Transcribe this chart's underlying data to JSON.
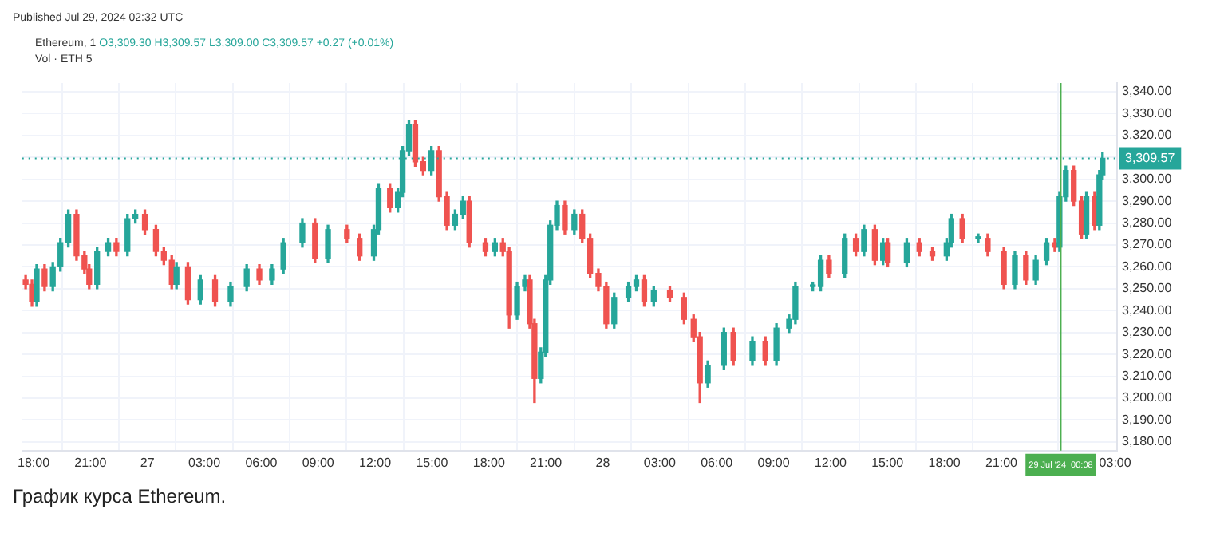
{
  "chart_data": {
    "type": "candlestick",
    "title": "Ethereum, 1",
    "subtitle": "O3,309.30 H3,309.57 L3,309.00 C3,309.57 +0.27 (+0.01%)",
    "annotations": [
      "Published Jul 29, 2024 02:32 UTC",
      "Vol · ETH 5",
      "График курса Ethereum."
    ],
    "x": [
      "2024-07-26T17:35",
      "2024-07-26T17:55",
      "2024-07-26T18:10",
      "2024-07-26T18:35",
      "2024-07-26T19:01",
      "2024-07-26T19:25",
      "2024-07-26T19:50",
      "2024-07-26T20:16",
      "2024-07-26T20:41",
      "2024-07-26T20:56",
      "2024-07-26T21:21",
      "2024-07-26T21:56",
      "2024-07-26T22:22",
      "2024-07-26T22:57",
      "2024-07-26T23:22",
      "2024-07-26T23:52",
      "2024-07-27T00:27",
      "2024-07-27T00:52",
      "2024-07-27T01:17",
      "2024-07-27T01:32",
      "2024-07-27T02:08",
      "2024-07-27T02:48",
      "2024-07-27T03:34",
      "2024-07-27T04:23",
      "2024-07-27T05:14",
      "2024-07-27T05:54",
      "2024-07-27T06:34",
      "2024-07-27T07:10",
      "2024-07-27T08:10",
      "2024-07-27T08:50",
      "2024-07-27T09:31",
      "2024-07-27T10:31",
      "2024-07-27T11:11",
      "2024-07-27T11:56",
      "2024-07-27T12:11",
      "2024-07-27T12:47",
      "2024-07-27T13:12",
      "2024-07-27T13:27",
      "2024-07-27T13:47",
      "2024-07-27T14:07",
      "2024-07-27T14:32",
      "2024-07-27T14:58",
      "2024-07-27T15:22",
      "2024-07-27T15:47",
      "2024-07-27T16:13",
      "2024-07-27T16:38",
      "2024-07-27T16:58",
      "2024-07-27T17:49",
      "2024-07-27T18:19",
      "2024-07-27T18:44",
      "2024-07-27T19:04",
      "2024-07-27T19:29",
      "2024-07-27T19:54",
      "2024-07-27T20:09",
      "2024-07-27T20:24",
      "2024-07-27T20:44",
      "2024-07-27T20:59",
      "2024-07-27T21:14",
      "2024-07-27T21:35",
      "2024-07-27T22:00",
      "2024-07-27T22:30",
      "2024-07-27T22:55",
      "2024-07-27T23:20",
      "2024-07-27T23:46",
      "2024-07-28T00:11",
      "2024-07-28T00:36",
      "2024-07-28T01:21",
      "2024-07-28T01:46",
      "2024-07-28T02:11",
      "2024-07-28T02:41",
      "2024-07-28T03:32",
      "2024-07-28T04:17",
      "2024-07-28T04:47",
      "2024-07-28T05:07",
      "2024-07-28T05:32",
      "2024-07-28T06:23",
      "2024-07-28T06:53",
      "2024-07-28T07:53",
      "2024-07-28T08:34",
      "2024-07-28T09:09",
      "2024-07-28T09:49",
      "2024-07-28T10:09",
      "2024-07-28T11:04",
      "2024-07-28T11:29",
      "2024-07-28T11:55",
      "2024-07-28T12:45",
      "2024-07-28T13:20",
      "2024-07-28T13:46",
      "2024-07-28T14:20",
      "2024-07-28T14:46",
      "2024-07-28T15:01",
      "2024-07-28T16:01",
      "2024-07-28T16:41",
      "2024-07-28T17:22",
      "2024-07-28T18:07",
      "2024-07-28T18:22",
      "2024-07-28T18:57",
      "2024-07-28T19:47",
      "2024-07-28T20:17",
      "2024-07-28T21:08",
      "2024-07-28T21:43",
      "2024-07-28T22:18",
      "2024-07-28T22:49",
      "2024-07-28T23:23",
      "2024-07-28T23:49",
      "2024-07-29T00:04",
      "2024-07-29T00:24",
      "2024-07-29T00:49",
      "2024-07-29T01:14",
      "2024-07-29T01:29",
      "2024-07-29T01:55",
      "2024-07-29T02:10",
      "2024-07-29T02:20"
    ],
    "ohlc": [
      [
        3254,
        3256,
        3250,
        3252
      ],
      [
        3252,
        3254,
        3242,
        3244
      ],
      [
        3244,
        3261,
        3242,
        3259
      ],
      [
        3259,
        3261,
        3249,
        3251
      ],
      [
        3251,
        3262,
        3249,
        3260
      ],
      [
        3260,
        3273,
        3258,
        3271
      ],
      [
        3271,
        3286,
        3269,
        3284
      ],
      [
        3284,
        3286,
        3263,
        3265
      ],
      [
        3265,
        3267,
        3257,
        3259
      ],
      [
        3259,
        3261,
        3250,
        3252
      ],
      [
        3252,
        3269,
        3250,
        3267
      ],
      [
        3267,
        3273,
        3265,
        3271
      ],
      [
        3271,
        3273,
        3265,
        3267
      ],
      [
        3267,
        3284,
        3265,
        3282
      ],
      [
        3282,
        3286,
        3280,
        3284
      ],
      [
        3284,
        3286,
        3275,
        3277
      ],
      [
        3277,
        3279,
        3265,
        3267
      ],
      [
        3267,
        3269,
        3261,
        3263
      ],
      [
        3263,
        3265,
        3250,
        3252
      ],
      [
        3252,
        3262,
        3250,
        3260
      ],
      [
        3260,
        3262,
        3243,
        3245
      ],
      [
        3245,
        3256,
        3243,
        3254
      ],
      [
        3254,
        3256,
        3242,
        3244
      ],
      [
        3244,
        3253,
        3242,
        3251
      ],
      [
        3251,
        3261,
        3249,
        3259
      ],
      [
        3259,
        3261,
        3252,
        3254
      ],
      [
        3254,
        3261,
        3252,
        3259
      ],
      [
        3259,
        3273,
        3257,
        3271
      ],
      [
        3271,
        3282,
        3269,
        3280
      ],
      [
        3280,
        3282,
        3262,
        3264
      ],
      [
        3264,
        3279,
        3262,
        3277
      ],
      [
        3277,
        3279,
        3271,
        3273
      ],
      [
        3273,
        3275,
        3263,
        3265
      ],
      [
        3265,
        3279,
        3263,
        3277
      ],
      [
        3277,
        3298,
        3275,
        3296
      ],
      [
        3296,
        3298,
        3285,
        3287
      ],
      [
        3287,
        3296,
        3285,
        3294
      ],
      [
        3294,
        3315,
        3292,
        3313
      ],
      [
        3313,
        3327,
        3311,
        3325
      ],
      [
        3325,
        3327,
        3306,
        3308
      ],
      [
        3308,
        3310,
        3302,
        3304
      ],
      [
        3304,
        3315,
        3302,
        3313
      ],
      [
        3313,
        3315,
        3290,
        3292
      ],
      [
        3292,
        3294,
        3277,
        3279
      ],
      [
        3279,
        3286,
        3277,
        3284
      ],
      [
        3284,
        3292,
        3282,
        3290
      ],
      [
        3290,
        3292,
        3269,
        3271
      ],
      [
        3271,
        3273,
        3265,
        3267
      ],
      [
        3267,
        3273,
        3265,
        3271
      ],
      [
        3271,
        3273,
        3265,
        3267
      ],
      [
        3267,
        3269,
        3232,
        3238
      ],
      [
        3238,
        3253,
        3236,
        3251
      ],
      [
        3251,
        3256,
        3249,
        3254
      ],
      [
        3254,
        3256,
        3232,
        3234
      ],
      [
        3234,
        3236,
        3198,
        3209
      ],
      [
        3209,
        3223,
        3207,
        3221
      ],
      [
        3221,
        3256,
        3219,
        3254
      ],
      [
        3254,
        3281,
        3252,
        3279
      ],
      [
        3279,
        3290,
        3277,
        3288
      ],
      [
        3288,
        3290,
        3275,
        3277
      ],
      [
        3277,
        3286,
        3275,
        3284
      ],
      [
        3284,
        3286,
        3271,
        3273
      ],
      [
        3273,
        3275,
        3255,
        3257
      ],
      [
        3257,
        3259,
        3249,
        3251
      ],
      [
        3251,
        3253,
        3232,
        3234
      ],
      [
        3234,
        3248,
        3232,
        3246
      ],
      [
        3246,
        3253,
        3244,
        3251
      ],
      [
        3251,
        3256,
        3249,
        3254
      ],
      [
        3254,
        3256,
        3242,
        3244
      ],
      [
        3244,
        3251,
        3242,
        3249
      ],
      [
        3249,
        3251,
        3244,
        3246
      ],
      [
        3246,
        3248,
        3234,
        3236
      ],
      [
        3236,
        3238,
        3226,
        3228
      ],
      [
        3228,
        3230,
        3198,
        3207
      ],
      [
        3207,
        3217,
        3205,
        3215
      ],
      [
        3215,
        3232,
        3213,
        3230
      ],
      [
        3230,
        3232,
        3215,
        3217
      ],
      [
        3217,
        3228,
        3215,
        3226
      ],
      [
        3226,
        3228,
        3215,
        3217
      ],
      [
        3217,
        3234,
        3215,
        3232
      ],
      [
        3232,
        3238,
        3230,
        3236
      ],
      [
        3236,
        3253,
        3234,
        3251
      ],
      [
        3251,
        3253,
        3249,
        3251
      ],
      [
        3251,
        3265,
        3249,
        3263
      ],
      [
        3263,
        3265,
        3255,
        3257
      ],
      [
        3257,
        3275,
        3255,
        3273
      ],
      [
        3273,
        3275,
        3265,
        3267
      ],
      [
        3267,
        3279,
        3265,
        3277
      ],
      [
        3277,
        3279,
        3261,
        3263
      ],
      [
        3263,
        3273,
        3261,
        3271
      ],
      [
        3271,
        3273,
        3260,
        3262
      ],
      [
        3262,
        3273,
        3260,
        3271
      ],
      [
        3271,
        3273,
        3265,
        3267
      ],
      [
        3267,
        3269,
        3263,
        3265
      ],
      [
        3265,
        3273,
        3263,
        3271
      ],
      [
        3271,
        3284,
        3269,
        3282
      ],
      [
        3282,
        3284,
        3271,
        3273
      ],
      [
        3273,
        3275,
        3271,
        3273
      ],
      [
        3273,
        3275,
        3265,
        3267
      ],
      [
        3267,
        3269,
        3250,
        3252
      ],
      [
        3252,
        3267,
        3250,
        3265
      ],
      [
        3265,
        3267,
        3252,
        3254
      ],
      [
        3254,
        3265,
        3252,
        3263
      ],
      [
        3263,
        3273,
        3261,
        3271
      ],
      [
        3271,
        3273,
        3267,
        3269
      ],
      [
        3269,
        3294,
        3267,
        3292
      ],
      [
        3292,
        3306,
        3290,
        3304
      ],
      [
        3304,
        3306,
        3288,
        3290
      ],
      [
        3290,
        3292,
        3273,
        3275
      ],
      [
        3275,
        3294,
        3273,
        3292
      ],
      [
        3292,
        3294,
        3277,
        3279
      ],
      [
        3279,
        3304,
        3277,
        3302
      ],
      [
        3302,
        3312,
        3300,
        3309.57
      ]
    ],
    "xlim": [
      "2024-07-26T17:24",
      "2024-07-29T03:06"
    ],
    "xticks": [
      {
        "value": "2024-07-26T18:00",
        "label": "18:00"
      },
      {
        "value": "2024-07-26T21:00",
        "label": "21:00"
      },
      {
        "value": "2024-07-27T00:00",
        "label": "27"
      },
      {
        "value": "2024-07-27T03:00",
        "label": "03:00"
      },
      {
        "value": "2024-07-27T06:00",
        "label": "06:00"
      },
      {
        "value": "2024-07-27T09:00",
        "label": "09:00"
      },
      {
        "value": "2024-07-27T12:00",
        "label": "12:00"
      },
      {
        "value": "2024-07-27T15:00",
        "label": "15:00"
      },
      {
        "value": "2024-07-27T18:00",
        "label": "18:00"
      },
      {
        "value": "2024-07-27T21:00",
        "label": "21:00"
      },
      {
        "value": "2024-07-28T00:00",
        "label": "28"
      },
      {
        "value": "2024-07-28T03:00",
        "label": "03:00"
      },
      {
        "value": "2024-07-28T06:00",
        "label": "06:00"
      },
      {
        "value": "2024-07-28T09:00",
        "label": "09:00"
      },
      {
        "value": "2024-07-28T12:00",
        "label": "12:00"
      },
      {
        "value": "2024-07-28T15:00",
        "label": "15:00"
      },
      {
        "value": "2024-07-28T18:00",
        "label": "18:00"
      },
      {
        "value": "2024-07-28T21:00",
        "label": "21:00"
      },
      {
        "value": "2024-07-29T03:00",
        "label": "03:00"
      }
    ],
    "ylim": [
      3176,
      3344
    ],
    "yticks": [
      {
        "value": 3180,
        "label": "3,180.00"
      },
      {
        "value": 3190,
        "label": "3,190.00"
      },
      {
        "value": 3200,
        "label": "3,200.00"
      },
      {
        "value": 3210,
        "label": "3,210.00"
      },
      {
        "value": 3220,
        "label": "3,220.00"
      },
      {
        "value": 3230,
        "label": "3,230.00"
      },
      {
        "value": 3240,
        "label": "3,240.00"
      },
      {
        "value": 3250,
        "label": "3,250.00"
      },
      {
        "value": 3260,
        "label": "3,260.00"
      },
      {
        "value": 3270,
        "label": "3,270.00"
      },
      {
        "value": 3280,
        "label": "3,280.00"
      },
      {
        "value": 3290,
        "label": "3,290.00"
      },
      {
        "value": 3300,
        "label": "3,300.00"
      },
      {
        "value": 3310,
        "label": null
      },
      {
        "value": 3320,
        "label": "3,320.00"
      },
      {
        "value": 3330,
        "label": "3,330.00"
      },
      {
        "value": 3340,
        "label": "3,340.00"
      }
    ],
    "ref_lines": [
      {
        "axis": "y",
        "value": 3309.57,
        "label": "3,309.57",
        "color": "#26a69a",
        "line_style": "dotted"
      },
      {
        "axis": "x",
        "value": "2024-07-29T00:08",
        "label": "29 Jul '24  00:08",
        "color": "#4caf50",
        "line_style": "solid"
      }
    ],
    "grid": true,
    "legend": false
  }
}
